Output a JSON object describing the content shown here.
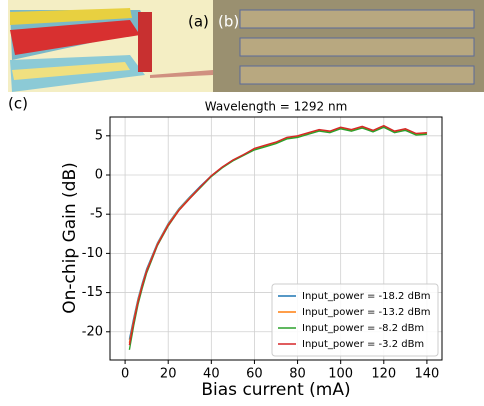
{
  "panel_labels": {
    "a": "(a)",
    "b": "(b)",
    "c": "(c)"
  },
  "chart_data": {
    "type": "line",
    "title": "Wavelength = 1292 nm",
    "x_label": "Bias current (mA)",
    "y_label": "On-chip Gain (dB)",
    "x": [
      2,
      4,
      6,
      8,
      10,
      15,
      20,
      25,
      30,
      35,
      40,
      45,
      50,
      55,
      60,
      65,
      70,
      75,
      80,
      85,
      90,
      95,
      100,
      105,
      110,
      115,
      120,
      125,
      130,
      135,
      140
    ],
    "series": [
      {
        "name": "Input_power = -18.2 dBm",
        "color": "#1f77b4",
        "values": [
          -21.0,
          -18.3,
          -15.8,
          -13.8,
          -12.0,
          -8.7,
          -6.2,
          -4.3,
          -2.8,
          -1.4,
          -0.1,
          1.0,
          1.9,
          2.6,
          3.3,
          3.7,
          4.1,
          4.7,
          4.9,
          5.3,
          5.7,
          5.5,
          6.0,
          5.7,
          6.0,
          5.6,
          6.1,
          5.5,
          5.7,
          5.2,
          5.3
        ]
      },
      {
        "name": "Input_power = -13.2 dBm",
        "color": "#ff7f0e",
        "values": [
          -21.4,
          -18.6,
          -16.0,
          -14.0,
          -12.2,
          -8.8,
          -6.3,
          -4.4,
          -2.9,
          -1.5,
          -0.1,
          1.0,
          1.9,
          2.6,
          3.3,
          3.7,
          4.1,
          4.7,
          4.9,
          5.3,
          5.7,
          5.5,
          6.0,
          5.7,
          6.1,
          5.6,
          6.2,
          5.5,
          5.8,
          5.2,
          5.3
        ]
      },
      {
        "name": "Input_power = -8.2 dBm",
        "color": "#2ca02c",
        "values": [
          -22.3,
          -19.2,
          -16.5,
          -14.4,
          -12.5,
          -9.0,
          -6.5,
          -4.5,
          -3.0,
          -1.6,
          -0.2,
          0.9,
          1.8,
          2.5,
          3.2,
          3.6,
          4.0,
          4.6,
          4.8,
          5.2,
          5.6,
          5.4,
          5.9,
          5.6,
          6.0,
          5.5,
          6.1,
          5.4,
          5.7,
          5.1,
          5.2
        ]
      },
      {
        "name": "Input_power = -3.2 dBm",
        "color": "#d62728",
        "values": [
          -21.7,
          -18.8,
          -16.2,
          -14.1,
          -12.3,
          -8.9,
          -6.4,
          -4.5,
          -3.0,
          -1.5,
          -0.1,
          1.0,
          1.9,
          2.6,
          3.4,
          3.8,
          4.2,
          4.8,
          5.0,
          5.4,
          5.8,
          5.6,
          6.1,
          5.8,
          6.2,
          5.7,
          6.3,
          5.6,
          5.9,
          5.3,
          5.4
        ]
      }
    ],
    "xlim": [
      -7,
      147
    ],
    "ylim": [
      -23.6,
      7.4
    ],
    "xticks": [
      0,
      20,
      40,
      60,
      80,
      100,
      120,
      140
    ],
    "yticks": [
      -20,
      -15,
      -10,
      -5,
      0,
      5
    ],
    "grid": true,
    "legend": "lower right"
  }
}
